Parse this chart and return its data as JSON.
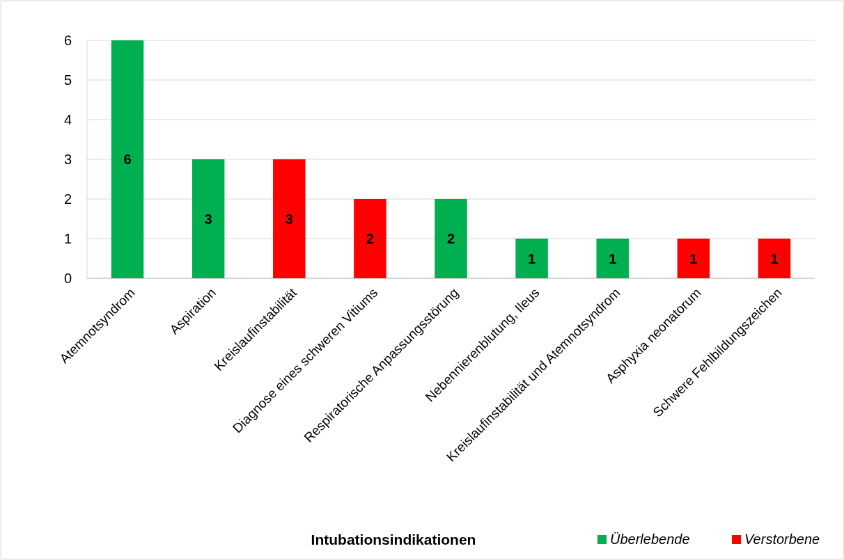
{
  "chart_data": {
    "type": "bar",
    "xlabel": "Intubationsindikationen",
    "categories": [
      "Atemnotsyndrom",
      "Aspiration",
      "Kreislaufinstabilität",
      "Diagnose eines schweren Vitiums",
      "Respiratorische Anpassungsstörung",
      "Nebennierenblutung, Ileus",
      "Kreislaufinstabilität und Atemnotsyndrom",
      "Asphyxia neonatorum",
      "Schwere Fehlbildungszeichen"
    ],
    "series": [
      {
        "name": "Überlebende",
        "color": "#00b050",
        "values": [
          6,
          3,
          null,
          null,
          2,
          1,
          1,
          null,
          null
        ]
      },
      {
        "name": "Verstorbene",
        "color": "#ff0000",
        "values": [
          null,
          null,
          3,
          2,
          null,
          null,
          null,
          1,
          1
        ]
      }
    ],
    "ylim": [
      0,
      6
    ],
    "yticks": [
      0,
      1,
      2,
      3,
      4,
      5,
      6
    ],
    "grid": "y",
    "legend": "bottom right",
    "data_labels": true
  }
}
